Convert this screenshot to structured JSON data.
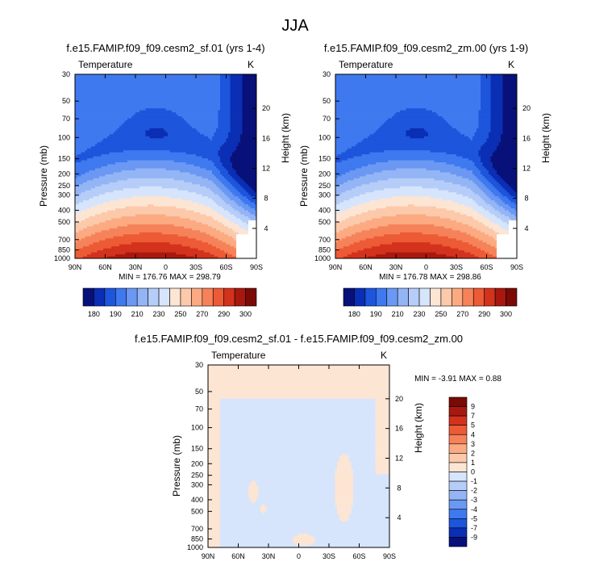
{
  "page": {
    "title": "JJA"
  },
  "chart_data": [
    {
      "type": "heatmap",
      "title": "f.e15.FAMIP.f09_f09.cesm2_sf.01 (yrs 1-4)",
      "left_label": "Temperature",
      "right_label": "K",
      "ylabel": "Pressure (mb)",
      "y2label": "Height (km)",
      "x_ticks": [
        "90N",
        "60N",
        "30N",
        "0",
        "30S",
        "60S",
        "90S"
      ],
      "y_ticks": [
        "30",
        "50",
        "70",
        "100",
        "150",
        "200",
        "250",
        "300",
        "400",
        "500",
        "700",
        "850",
        "1000"
      ],
      "y2_ticks": [
        "20",
        "16",
        "12",
        "8",
        "4"
      ],
      "stats": "MIN = 176.76   MAX = 298.79",
      "colorbar_labels": [
        "180",
        "190",
        "210",
        "230",
        "250",
        "270",
        "290",
        "300"
      ]
    },
    {
      "type": "heatmap",
      "title": "f.e15.FAMIP.f09_f09.cesm2_zm.00 (yrs 1-9)",
      "left_label": "Temperature",
      "right_label": "K",
      "ylabel": "Pressure (mb)",
      "y2label": "Height (km)",
      "x_ticks": [
        "90N",
        "60N",
        "30N",
        "0",
        "30S",
        "60S",
        "90S"
      ],
      "y_ticks": [
        "30",
        "50",
        "70",
        "100",
        "150",
        "200",
        "250",
        "300",
        "400",
        "500",
        "700",
        "850",
        "1000"
      ],
      "y2_ticks": [
        "20",
        "16",
        "12",
        "8",
        "4"
      ],
      "stats": "MIN = 176.78   MAX = 298.86",
      "colorbar_labels": [
        "180",
        "190",
        "210",
        "230",
        "250",
        "270",
        "290",
        "300"
      ]
    },
    {
      "type": "heatmap",
      "title": "f.e15.FAMIP.f09_f09.cesm2_sf.01 - f.e15.FAMIP.f09_f09.cesm2_zm.00",
      "left_label": "Temperature",
      "right_label": "K",
      "ylabel": "Pressure (mb)",
      "y2label": "Height (km)",
      "x_ticks": [
        "90N",
        "60N",
        "30N",
        "0",
        "30S",
        "60S",
        "90S"
      ],
      "y_ticks": [
        "30",
        "50",
        "70",
        "100",
        "150",
        "200",
        "250",
        "300",
        "400",
        "500",
        "700",
        "850",
        "1000"
      ],
      "y2_ticks": [
        "20",
        "16",
        "12",
        "8",
        "4"
      ],
      "stats": "MIN =  -3.91   MAX =   0.88",
      "colorbar_labels": [
        "9",
        "7",
        "5",
        "4",
        "3",
        "2",
        "1",
        "0",
        "-1",
        "-2",
        "-3",
        "-4",
        "-5",
        "-7",
        "-9"
      ]
    }
  ],
  "colors": {
    "temp_scale": [
      "#08107a",
      "#0a2fb4",
      "#1d55dc",
      "#3f79ef",
      "#6a98f3",
      "#94b5f5",
      "#b5cdf8",
      "#d6e5fc",
      "#fde5d4",
      "#fcc9aa",
      "#fbaa82",
      "#f6825a",
      "#ed5a36",
      "#d3321d",
      "#a8180f",
      "#7a0a06"
    ],
    "diff_scale": [
      "#7a0a06",
      "#a8180f",
      "#d3321d",
      "#ed5a36",
      "#f6825a",
      "#fbaa82",
      "#fcc9aa",
      "#fde5d4",
      "#d6e5fc",
      "#b5cdf8",
      "#94b5f5",
      "#6a98f3",
      "#3f79ef",
      "#1d55dc",
      "#0a2fb4",
      "#08107a"
    ]
  }
}
